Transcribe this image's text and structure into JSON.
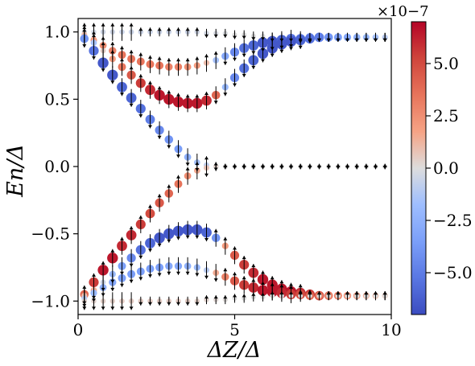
{
  "chart_data": {
    "type": "scatter",
    "title": "",
    "xlabel": "ΔZ/Δ",
    "ylabel": "En/Δ",
    "xlim": [
      0,
      10
    ],
    "ylim": [
      -1.1,
      1.1
    ],
    "xticks": [
      0,
      5,
      10
    ],
    "xtick_labels": [
      "0",
      "5",
      "10"
    ],
    "yticks": [
      -1.0,
      -0.5,
      0.0,
      0.5,
      1.0
    ],
    "ytick_labels": [
      "−1.0",
      "−0.5",
      "0.0",
      "0.5",
      "1.0"
    ],
    "grid": false,
    "colorbar": {
      "colormap": "coolwarm",
      "range": [
        -7e-07,
        7e-07
      ],
      "ticks": [
        -5.0,
        -2.5,
        0.0,
        2.5,
        5.0
      ],
      "tick_labels": [
        "−5.0",
        "−2.5",
        "0.0",
        "2.5",
        "5.0"
      ],
      "scale_label": "×10−7"
    },
    "x": [
      0.2,
      0.5,
      0.8,
      1.1,
      1.4,
      1.7,
      2.0,
      2.3,
      2.6,
      2.9,
      3.2,
      3.5,
      3.8,
      4.1,
      4.4,
      4.7,
      5.0,
      5.3,
      5.6,
      5.9,
      6.2,
      6.5,
      6.8,
      7.1,
      7.4,
      7.7,
      8.0,
      8.3,
      8.6,
      8.9,
      9.2,
      9.5,
      9.8
    ],
    "series": [
      {
        "energies": [
          1.0,
          1.0,
          1.0,
          1.0,
          1.0,
          1.0,
          1.0,
          1.0,
          1.0,
          1.0,
          1.0,
          1.0,
          1.0,
          0.99,
          0.99,
          0.99,
          0.98,
          0.98,
          0.97,
          0.97,
          0.96,
          0.96,
          0.96,
          0.96,
          0.96,
          0.96,
          0.96,
          0.96,
          0.96,
          0.96,
          0.96,
          0.96,
          0.96
        ],
        "color_values": [
          -0.3,
          -0.3,
          -0.4,
          -0.4,
          -0.5,
          -0.5,
          -0.5,
          -0.5,
          -0.5,
          -0.5,
          -0.5,
          -0.5,
          -0.4,
          -0.3,
          -0.2,
          -0.1,
          0.0,
          0.0,
          0.0,
          0.0,
          0.0,
          0.0,
          0.0,
          0.0,
          0.0,
          0.0,
          0.0,
          0.0,
          0.0,
          0.0,
          0.0,
          0.0,
          0.0
        ],
        "spin": [
          1,
          1,
          1,
          1,
          1,
          1,
          0.5,
          0.5,
          0.5,
          0.5,
          0.5,
          0.5,
          0.5,
          -0.5,
          -0.5,
          -0.5,
          -0.5,
          -0.5,
          -0.5,
          -0.5,
          -0.5,
          -0.5,
          -0.5,
          -0.5,
          -0.5,
          -0.5,
          -0.5,
          -0.5,
          -0.5,
          -0.5,
          -0.5,
          -0.5,
          -0.5
        ]
      },
      {
        "energies": [
          0.98,
          0.94,
          0.9,
          0.86,
          0.83,
          0.8,
          0.78,
          0.76,
          0.75,
          0.74,
          0.74,
          0.74,
          0.75,
          0.77,
          0.79,
          0.82,
          0.85,
          0.88,
          0.9,
          0.92,
          0.93,
          0.94,
          0.95,
          0.95,
          0.96,
          0.96,
          0.96,
          0.96,
          0.96,
          0.96,
          0.96,
          0.96,
          0.96
        ],
        "color_values": [
          1.0,
          2.0,
          2.5,
          3.0,
          3.5,
          3.5,
          3.5,
          3.5,
          3.5,
          3.0,
          3.0,
          2.5,
          2.0,
          1.0,
          -1.5,
          -3.0,
          -4.5,
          -5.5,
          -6.0,
          -6.5,
          -6.5,
          -6.0,
          -5.5,
          -5.0,
          -4.0,
          -3.0,
          -2.5,
          -2.0,
          -1.5,
          -1.0,
          -0.8,
          -0.5,
          -0.3
        ],
        "spin": [
          1,
          1,
          1,
          1,
          1,
          1,
          1,
          1,
          1,
          1,
          1,
          1,
          1,
          1,
          1,
          -1,
          -1,
          -1,
          -1,
          -1,
          -1,
          -1,
          -1,
          -0.5,
          -0.5,
          -0.5,
          -0.5,
          -0.5,
          -0.5,
          -0.5,
          -0.5,
          -0.5,
          -0.5
        ]
      },
      {
        "energies": [
          0.96,
          0.92,
          0.86,
          0.8,
          0.74,
          0.68,
          0.62,
          0.57,
          0.53,
          0.5,
          0.48,
          0.47,
          0.47,
          0.49,
          0.53,
          0.59,
          0.66,
          0.73,
          0.79,
          0.84,
          0.88,
          0.91,
          0.93,
          0.94,
          0.95,
          0.96,
          0.96,
          0.96,
          0.96,
          0.96,
          0.96,
          0.96,
          0.96
        ],
        "color_values": [
          -1.0,
          -1.5,
          0.5,
          2.0,
          3.5,
          4.5,
          5.5,
          6.0,
          6.5,
          6.5,
          6.5,
          6.5,
          6.5,
          6.0,
          4.0,
          -2.0,
          -4.5,
          -5.5,
          -6.0,
          -6.5,
          -6.5,
          -6.5,
          -6.5,
          -6.0,
          -5.5,
          -5.0,
          -4.0,
          -3.5,
          -3.0,
          -2.5,
          -2.0,
          -1.5,
          -1.0
        ],
        "spin": [
          1,
          1,
          1,
          1,
          1,
          1,
          1,
          1,
          1,
          1,
          1,
          1,
          1,
          1,
          -1,
          -1,
          -1,
          -1,
          -1,
          -1,
          -1,
          -1,
          -1,
          -1,
          -0.5,
          -0.5,
          -0.5,
          -0.5,
          -0.5,
          -0.5,
          -0.5,
          -0.5,
          -0.5
        ]
      },
      {
        "energies": [
          0.95,
          0.86,
          0.77,
          0.68,
          0.59,
          0.51,
          0.43,
          0.35,
          0.27,
          0.2,
          0.13,
          0.07,
          0.03,
          0.01,
          0.0,
          0.0,
          0.0,
          0.0,
          0.0,
          0.0,
          0.0,
          0.0,
          0.0,
          0.0,
          0.0,
          0.0,
          0.0,
          0.0,
          0.0,
          0.0,
          0.0,
          0.0,
          0.0
        ],
        "color_values": [
          -4.0,
          -5.5,
          -6.5,
          -6.5,
          -6.0,
          -6.0,
          -5.5,
          -5.0,
          -4.5,
          -4.0,
          -3.5,
          -2.5,
          -1.5,
          -0.8,
          -0.3,
          0.0,
          0.0,
          0.0,
          0.0,
          0.0,
          0.0,
          0.0,
          0.0,
          0.0,
          0.0,
          0.0,
          0.0,
          0.0,
          0.0,
          0.0,
          0.0,
          0.0,
          0.0
        ],
        "spin": [
          -1,
          -1,
          -1,
          -1,
          -1,
          -1,
          -1,
          -1,
          -1,
          -1,
          -1,
          -1,
          -1,
          1,
          0.5,
          0.3,
          0.3,
          0.3,
          0.3,
          0.3,
          0.3,
          0.3,
          0.3,
          0.3,
          0.3,
          0.3,
          0.3,
          0.3,
          0.3,
          0.3,
          0.3,
          0.3,
          0.3
        ]
      },
      {
        "energies": [
          -0.95,
          -0.86,
          -0.77,
          -0.68,
          -0.59,
          -0.51,
          -0.43,
          -0.35,
          -0.27,
          -0.2,
          -0.13,
          -0.07,
          -0.03,
          -0.01,
          0.0,
          0.0,
          0.0,
          0.0,
          0.0,
          0.0,
          0.0,
          0.0,
          0.0,
          0.0,
          0.0,
          0.0,
          0.0,
          0.0,
          0.0,
          0.0,
          0.0,
          0.0,
          0.0
        ],
        "color_values": [
          4.0,
          5.5,
          6.5,
          6.5,
          6.0,
          6.0,
          5.5,
          5.0,
          4.5,
          4.0,
          3.5,
          2.5,
          1.5,
          0.8,
          0.3,
          0.0,
          0.0,
          0.0,
          0.0,
          0.0,
          0.0,
          0.0,
          0.0,
          0.0,
          0.0,
          0.0,
          0.0,
          0.0,
          0.0,
          0.0,
          0.0,
          0.0,
          0.0
        ],
        "spin": [
          1,
          1,
          1,
          1,
          1,
          1,
          1,
          1,
          1,
          1,
          1,
          1,
          1,
          -1,
          -0.5,
          -0.3,
          -0.3,
          -0.3,
          -0.3,
          -0.3,
          -0.3,
          -0.3,
          -0.3,
          -0.3,
          -0.3,
          -0.3,
          -0.3,
          -0.3,
          -0.3,
          -0.3,
          -0.3,
          -0.3,
          -0.3
        ]
      },
      {
        "energies": [
          -0.96,
          -0.92,
          -0.86,
          -0.8,
          -0.74,
          -0.68,
          -0.62,
          -0.57,
          -0.53,
          -0.5,
          -0.48,
          -0.47,
          -0.47,
          -0.49,
          -0.53,
          -0.59,
          -0.66,
          -0.73,
          -0.79,
          -0.84,
          -0.88,
          -0.91,
          -0.93,
          -0.94,
          -0.95,
          -0.96,
          -0.96,
          -0.96,
          -0.96,
          -0.96,
          -0.96,
          -0.96,
          -0.96
        ],
        "color_values": [
          1.0,
          1.5,
          -0.5,
          -2.0,
          -3.5,
          -4.5,
          -5.5,
          -6.0,
          -6.5,
          -6.5,
          -6.5,
          -6.5,
          -6.5,
          -6.0,
          -4.0,
          2.0,
          4.5,
          5.5,
          6.0,
          6.5,
          6.5,
          6.5,
          6.5,
          6.0,
          5.5,
          5.0,
          4.0,
          3.5,
          3.0,
          2.5,
          2.0,
          1.5,
          1.0
        ],
        "spin": [
          -1,
          -1,
          -1,
          -1,
          -1,
          -1,
          -1,
          -1,
          -1,
          -1,
          -1,
          -1,
          -1,
          -1,
          1,
          1,
          1,
          1,
          1,
          1,
          1,
          1,
          1,
          1,
          0.5,
          0.5,
          0.5,
          0.5,
          0.5,
          0.5,
          0.5,
          0.5,
          0.5
        ]
      },
      {
        "energies": [
          -0.98,
          -0.94,
          -0.9,
          -0.86,
          -0.83,
          -0.8,
          -0.78,
          -0.76,
          -0.75,
          -0.74,
          -0.74,
          -0.74,
          -0.75,
          -0.77,
          -0.79,
          -0.82,
          -0.85,
          -0.88,
          -0.9,
          -0.92,
          -0.93,
          -0.94,
          -0.95,
          -0.95,
          -0.96,
          -0.96,
          -0.96,
          -0.96,
          -0.96,
          -0.96,
          -0.96,
          -0.96,
          -0.96
        ],
        "color_values": [
          -1.0,
          -2.0,
          -2.5,
          -3.0,
          -3.5,
          -3.5,
          -3.5,
          -3.5,
          -3.5,
          -3.0,
          -3.0,
          -2.5,
          -2.0,
          -1.0,
          1.5,
          3.0,
          4.5,
          5.5,
          6.0,
          6.5,
          6.5,
          6.0,
          5.5,
          5.0,
          4.0,
          3.0,
          2.5,
          2.0,
          1.5,
          1.0,
          0.8,
          0.5,
          0.3
        ],
        "spin": [
          -1,
          -1,
          -1,
          -1,
          -1,
          -1,
          -1,
          -1,
          -1,
          -1,
          -1,
          -1,
          -1,
          -1,
          -1,
          1,
          1,
          1,
          1,
          1,
          1,
          1,
          1,
          0.5,
          0.5,
          0.5,
          0.5,
          0.5,
          0.5,
          0.5,
          0.5,
          0.5,
          0.5
        ]
      },
      {
        "energies": [
          -1.0,
          -1.0,
          -1.0,
          -1.0,
          -1.0,
          -1.0,
          -1.0,
          -1.0,
          -1.0,
          -1.0,
          -1.0,
          -1.0,
          -1.0,
          -0.99,
          -0.99,
          -0.99,
          -0.98,
          -0.98,
          -0.97,
          -0.97,
          -0.96,
          -0.96,
          -0.96,
          -0.96,
          -0.96,
          -0.96,
          -0.96,
          -0.96,
          -0.96,
          -0.96,
          -0.96,
          -0.96,
          -0.96
        ],
        "color_values": [
          0.3,
          0.3,
          0.4,
          0.4,
          0.5,
          0.5,
          0.5,
          0.5,
          0.5,
          0.5,
          0.5,
          0.5,
          0.4,
          0.3,
          0.2,
          0.1,
          0.0,
          0.0,
          0.0,
          0.0,
          0.0,
          0.0,
          0.0,
          0.0,
          0.0,
          0.0,
          0.0,
          0.0,
          0.0,
          0.0,
          0.0,
          0.0,
          0.0
        ],
        "spin": [
          -1,
          -1,
          -1,
          -1,
          -1,
          -1,
          -0.5,
          -0.5,
          -0.5,
          -0.5,
          -0.5,
          -0.5,
          -0.5,
          0.5,
          0.5,
          0.5,
          0.5,
          0.5,
          0.5,
          0.5,
          0.5,
          0.5,
          0.5,
          0.5,
          0.5,
          0.5,
          0.5,
          0.5,
          0.5,
          0.5,
          0.5,
          0.5,
          0.5
        ]
      }
    ]
  }
}
